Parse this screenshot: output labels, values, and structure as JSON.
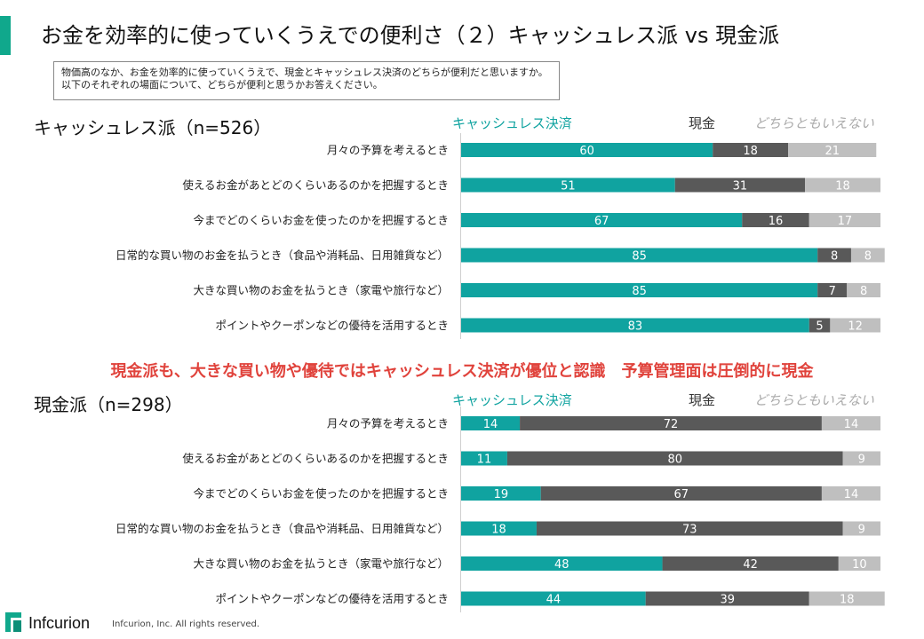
{
  "page": {
    "title": "お金を効率的に使っていくうえでの便利さ（２）キャッシュレス派 vs 現金派",
    "question_lines": [
      "物価高のなか、お金を効率的に使っていくうえで、現金とキャッシュレス決済のどちらが便利だと思いますか。",
      "以下のそれぞれの場面について、どちらが便利と思うかお答えください。"
    ],
    "headline": "現金派も、大きな買い物や優待ではキャッシュレス決済が優位と認識　予算管理面は圧倒的に現金",
    "footer": {
      "logo": "Infcurion",
      "copyright": "Infcurion, Inc.  All rights reserved."
    },
    "colors": {
      "cashless": "#10a3a0",
      "cash": "#595959",
      "neither": "#bfbfbf",
      "accent": "#10a88c",
      "headline": "#e0433c"
    }
  },
  "chart_data": [
    {
      "type": "bar",
      "stacked": true,
      "orientation": "horizontal",
      "title": "キャッシュレス派（n=526）",
      "legend": [
        "キャッシュレス決済",
        "現金",
        "どちらともいえない"
      ],
      "categories": [
        "月々の予算を考えるとき",
        "使えるお金があとどのくらいあるのかを把握するとき",
        "今までどのくらいお金を使ったのかを把握するとき",
        "日常的な買い物のお金を払うとき（食品や消耗品、日用雑貨など）",
        "大きな買い物のお金を払うとき（家電や旅行など）",
        "ポイントやクーポンなどの優待を活用するとき"
      ],
      "series": [
        {
          "name": "キャッシュレス決済",
          "values": [
            60,
            51,
            67,
            85,
            85,
            83
          ]
        },
        {
          "name": "現金",
          "values": [
            18,
            31,
            16,
            8,
            7,
            5
          ]
        },
        {
          "name": "どちらともいえない",
          "values": [
            21,
            18,
            17,
            8,
            8,
            12
          ]
        }
      ],
      "xlim": [
        0,
        100
      ]
    },
    {
      "type": "bar",
      "stacked": true,
      "orientation": "horizontal",
      "title": "現金派（n=298）",
      "legend": [
        "キャッシュレス決済",
        "現金",
        "どちらともいえない"
      ],
      "categories": [
        "月々の予算を考えるとき",
        "使えるお金があとどのくらいあるのかを把握するとき",
        "今までどのくらいお金を使ったのかを把握するとき",
        "日常的な買い物のお金を払うとき（食品や消耗品、日用雑貨など）",
        "大きな買い物のお金を払うとき（家電や旅行など）",
        "ポイントやクーポンなどの優待を活用するとき"
      ],
      "series": [
        {
          "name": "キャッシュレス決済",
          "values": [
            14,
            11,
            19,
            18,
            48,
            44
          ]
        },
        {
          "name": "現金",
          "values": [
            72,
            80,
            67,
            73,
            42,
            39
          ]
        },
        {
          "name": "どちらともいえない",
          "values": [
            14,
            9,
            14,
            9,
            10,
            18
          ]
        }
      ],
      "xlim": [
        0,
        100
      ]
    }
  ]
}
